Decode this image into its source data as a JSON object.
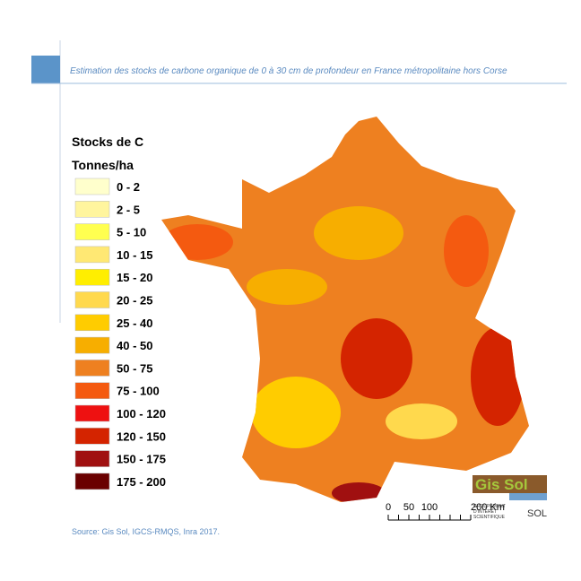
{
  "header": {
    "title": "Estimation des stocks de carbone organique de 0 à 30 cm de profondeur en France métropolitaine hors Corse"
  },
  "legend": {
    "title": "Stocks de C",
    "unit": "Tonnes/ha",
    "items": [
      {
        "label": "0 - 2",
        "color": "#ffffcc"
      },
      {
        "label": "2 - 5",
        "color": "#fff59e"
      },
      {
        "label": "5 - 10",
        "color": "#ffff50"
      },
      {
        "label": "10 - 15",
        "color": "#ffe873"
      },
      {
        "label": "15 - 20",
        "color": "#ffee00"
      },
      {
        "label": "20 - 25",
        "color": "#ffd94d"
      },
      {
        "label": "25 - 40",
        "color": "#ffcc00"
      },
      {
        "label": "40 - 50",
        "color": "#f7ae00"
      },
      {
        "label": "50 - 75",
        "color": "#ee8020"
      },
      {
        "label": "75 - 100",
        "color": "#f45a10"
      },
      {
        "label": "100 - 120",
        "color": "#ee1111"
      },
      {
        "label": "120 - 150",
        "color": "#d42400"
      },
      {
        "label": "150 - 175",
        "color": "#a01010"
      },
      {
        "label": "175 - 200",
        "color": "#6a0000"
      }
    ]
  },
  "scale_bar": {
    "labels": [
      "0",
      "50",
      "100",
      "200 Km"
    ]
  },
  "logo": {
    "name": "Gis Sol",
    "line1": "GROUPEMENT",
    "line2": "D'INTÉRÊT",
    "line3": "SCIENTIFIQUE",
    "word": "SOL"
  },
  "source": "Source: Gis Sol, IGCS-RMQS, Inra 2017."
}
